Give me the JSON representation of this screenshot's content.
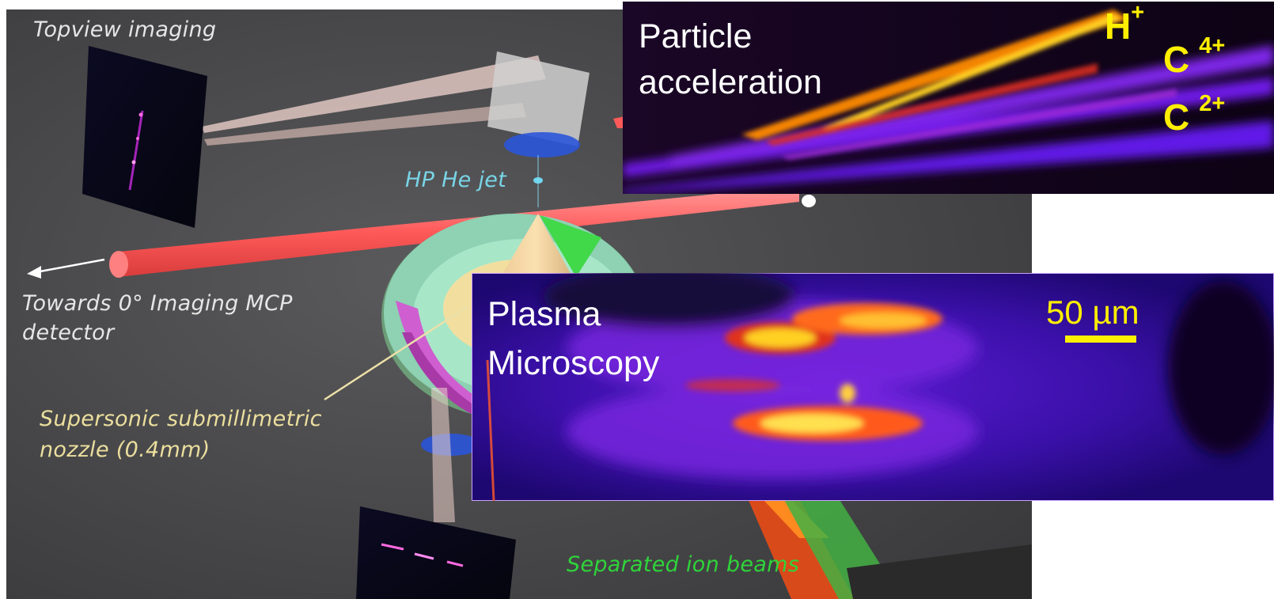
{
  "setup_labels": {
    "topview": "Topview imaging",
    "hp_jet": "HP He jet",
    "towards_line1": "Towards 0° Imaging MCP",
    "towards_line2": "detector",
    "nozzle_line1": "Supersonic submillimetric",
    "nozzle_line2": "nozzle (0.4mm)",
    "separated": "Separated ion beams"
  },
  "particle_panel": {
    "title_line1": "Particle",
    "title_line2": "acceleration",
    "ions": [
      {
        "base": "H",
        "charge": "+"
      },
      {
        "base": "C",
        "charge": "4+"
      },
      {
        "base": "C",
        "charge": "2+"
      }
    ]
  },
  "plasma_panel": {
    "title_line1": "Plasma",
    "title_line2": "Microscopy",
    "scale_bar_label": "50 µm"
  },
  "colors": {
    "scene_bg": "#4d4d4f",
    "label_grey": "#e6e6e6",
    "label_cyan": "#79d4e6",
    "label_cream": "#ecdf9e",
    "label_green": "#2fd43a",
    "ion_yellow": "#ffef00",
    "laser_red": "#ff6b6b"
  }
}
